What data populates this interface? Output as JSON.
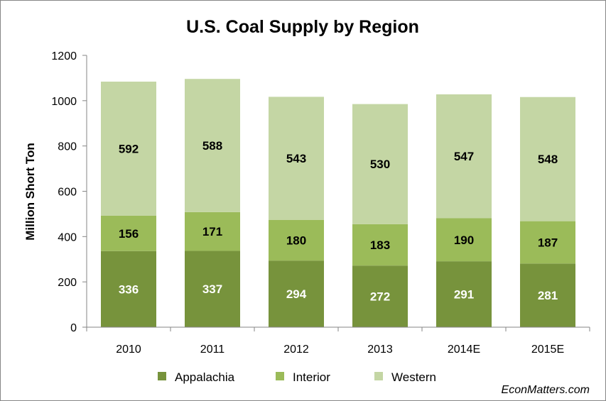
{
  "chart_data": {
    "type": "bar",
    "stacked": true,
    "title": "U.S. Coal Supply by Region",
    "xlabel": "",
    "ylabel": "Million Short Ton",
    "ylim": [
      0,
      1200
    ],
    "yticks": [
      0,
      200,
      400,
      600,
      800,
      1000,
      1200
    ],
    "grid": false,
    "legend_position": "bottom",
    "categories": [
      "2010",
      "2011",
      "2012",
      "2013",
      "2014E",
      "2015E"
    ],
    "series": [
      {
        "name": "Appalachia",
        "color": "#77933c",
        "label_color": "#ffffff",
        "values": [
          336,
          337,
          294,
          272,
          291,
          281
        ]
      },
      {
        "name": "Interior",
        "color": "#9bbb59",
        "label_color": "#000000",
        "values": [
          156,
          171,
          180,
          183,
          190,
          187
        ]
      },
      {
        "name": "Western",
        "color": "#c4d6a4",
        "label_color": "#000000",
        "values": [
          592,
          588,
          543,
          530,
          547,
          548
        ]
      }
    ]
  },
  "watermark": "EconMatters.com"
}
